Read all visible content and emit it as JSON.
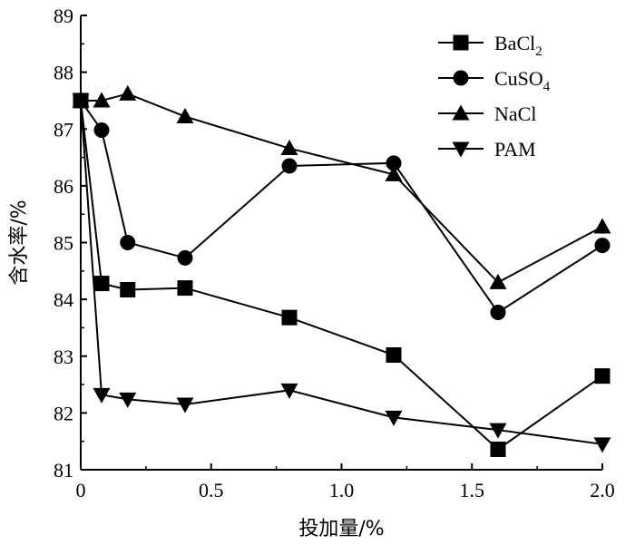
{
  "chart_data": {
    "type": "line",
    "xlabel": "投加量/%",
    "ylabel": "含水率/%",
    "xlim": [
      0,
      2.0
    ],
    "ylim": [
      81,
      89
    ],
    "xticks": [
      0,
      0.5,
      1.0,
      1.5,
      2.0
    ],
    "xtick_labels": [
      "0",
      "0.5",
      "1.0",
      "1.5",
      "2.0"
    ],
    "yticks": [
      81,
      82,
      83,
      84,
      85,
      86,
      87,
      88,
      89
    ],
    "ytick_labels": [
      "81",
      "82",
      "83",
      "84",
      "85",
      "86",
      "87",
      "88",
      "89"
    ],
    "grid": false,
    "legend_position": "top-right",
    "series": [
      {
        "name": "BaCl",
        "name_sub": "2",
        "marker": "square",
        "x": [
          0,
          0.08,
          0.18,
          0.4,
          0.8,
          1.2,
          1.6,
          2.0
        ],
        "values": [
          87.5,
          84.28,
          84.17,
          84.2,
          83.68,
          83.02,
          81.36,
          82.65
        ]
      },
      {
        "name": "CuSO",
        "name_sub": "4",
        "marker": "circle",
        "x": [
          0,
          0.08,
          0.18,
          0.4,
          0.8,
          1.2,
          1.6,
          2.0
        ],
        "values": [
          87.5,
          86.98,
          85.0,
          84.73,
          86.35,
          86.4,
          83.77,
          84.95
        ]
      },
      {
        "name": "NaCl",
        "name_sub": "",
        "marker": "triangle-up",
        "x": [
          0,
          0.08,
          0.18,
          0.4,
          0.8,
          1.2,
          1.6,
          2.0
        ],
        "values": [
          87.5,
          87.5,
          87.62,
          87.22,
          86.66,
          86.2,
          84.3,
          85.28
        ]
      },
      {
        "name": "PAM",
        "name_sub": "",
        "marker": "triangle-down",
        "x": [
          0,
          0.08,
          0.18,
          0.4,
          0.8,
          1.2,
          1.6,
          2.0
        ],
        "values": [
          87.5,
          82.32,
          82.24,
          82.15,
          82.4,
          81.92,
          81.7,
          81.45
        ]
      }
    ]
  }
}
